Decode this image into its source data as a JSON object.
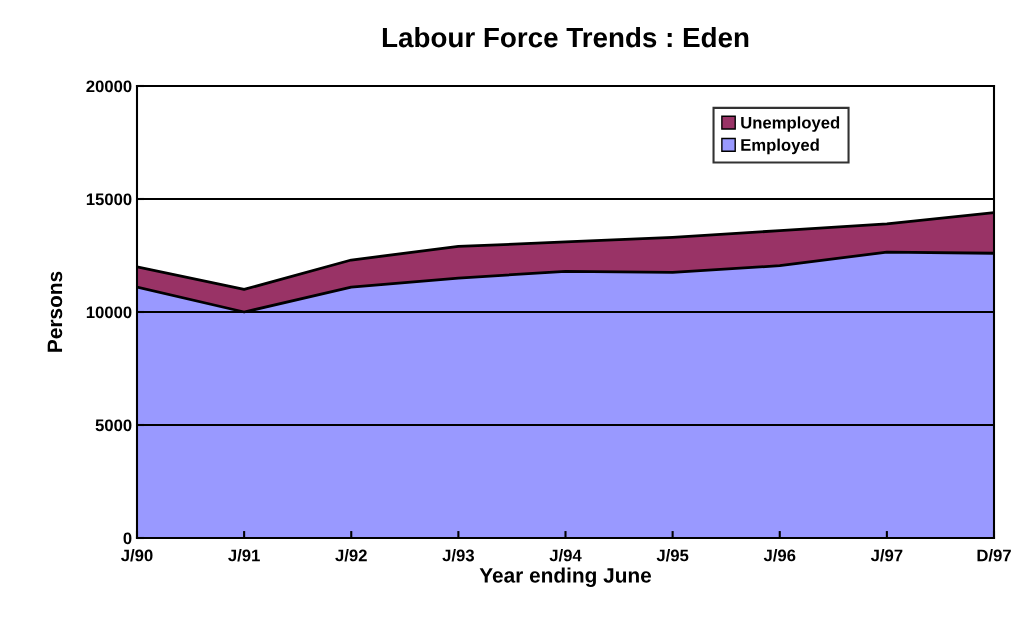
{
  "chart_data": {
    "type": "area",
    "stacked": true,
    "title": "Labour Force Trends : Eden",
    "xlabel": "Year ending June",
    "ylabel": "Persons",
    "categories": [
      "J/90",
      "J/91",
      "J/92",
      "J/93",
      "J/94",
      "J/95",
      "J/96",
      "J/97",
      "D/97"
    ],
    "series": [
      {
        "name": "Employed",
        "color": "#9999ff",
        "values": [
          11100,
          10000,
          11100,
          11500,
          11800,
          11750,
          12050,
          12650,
          12600
        ]
      },
      {
        "name": "Unemployed",
        "color": "#993366",
        "values": [
          900,
          1000,
          1200,
          1400,
          1300,
          1550,
          1550,
          1250,
          1800
        ]
      }
    ],
    "ylim": [
      0,
      20000
    ],
    "yticks": [
      0,
      5000,
      10000,
      15000,
      20000
    ],
    "grid": "y",
    "legend": "top right"
  }
}
